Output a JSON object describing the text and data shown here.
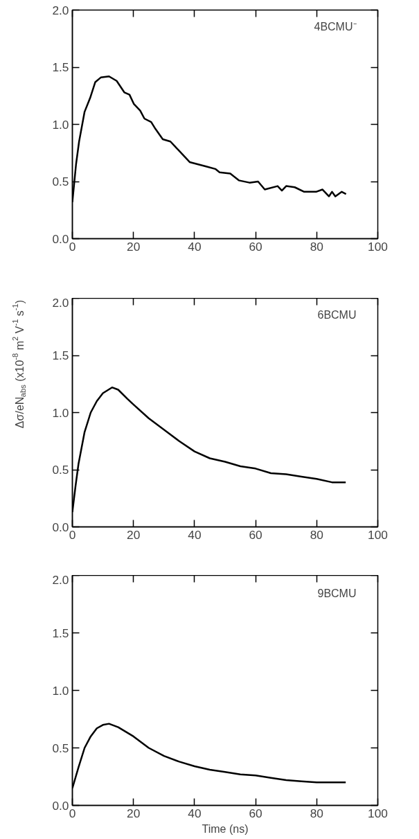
{
  "chart_data": [
    {
      "type": "line",
      "annotations": [
        "4BCMU⁻"
      ],
      "xlim": [
        0,
        100
      ],
      "ylim": [
        0,
        2.0
      ],
      "xticks": [
        0,
        20,
        40,
        60,
        80,
        100
      ],
      "yticks": [
        {
          "value": 0,
          "label": "0.0"
        },
        {
          "value": 0.5,
          "label": "0.5"
        },
        {
          "value": 1,
          "label": "1.0"
        },
        {
          "value": 1.5,
          "label": "1.5"
        },
        {
          "value": 2,
          "label": "2.0"
        }
      ],
      "grid": false,
      "marker": "none",
      "line_style": "solid",
      "series": [
        {
          "color": "#000000",
          "x": [
            0,
            1.2,
            2.2,
            4,
            5.8,
            7.5,
            9.3,
            12,
            14.5,
            17,
            18.7,
            20.1,
            22.2,
            23.6,
            25.8,
            27.2,
            29.6,
            32.1,
            34.9,
            38.4,
            41.2,
            44,
            46.8,
            48.2,
            51.7,
            54.5,
            58,
            60.8,
            63,
            67.2,
            68.6,
            70,
            72.8,
            75.9,
            79.8,
            81.9,
            84,
            85,
            86.1,
            88.2,
            89.6
          ],
          "values": [
            0.32,
            0.65,
            0.85,
            1.11,
            1.23,
            1.37,
            1.41,
            1.42,
            1.38,
            1.28,
            1.26,
            1.18,
            1.12,
            1.05,
            1.02,
            0.96,
            0.87,
            0.85,
            0.77,
            0.67,
            0.65,
            0.63,
            0.61,
            0.58,
            0.57,
            0.51,
            0.49,
            0.5,
            0.43,
            0.46,
            0.42,
            0.46,
            0.45,
            0.41,
            0.41,
            0.43,
            0.37,
            0.41,
            0.37,
            0.41,
            0.39
          ]
        }
      ]
    },
    {
      "type": "line",
      "annotations": [
        "6BCMU"
      ],
      "ylabel": "Δσ/eN$_{abs}$ (x10$^{-8}$ m$^{2}$ V$^{-1}$ s$^{-1}$)",
      "xlim": [
        0,
        100
      ],
      "ylim": [
        0,
        2.0
      ],
      "xticks": [
        0,
        20,
        40,
        60,
        80,
        100
      ],
      "yticks": [
        {
          "value": 0,
          "label": "0.0"
        },
        {
          "value": 0.5,
          "label": "0.5"
        },
        {
          "value": 1,
          "label": "1.0"
        },
        {
          "value": 1.5,
          "label": "1.5"
        },
        {
          "value": 2,
          "label": "2.0"
        }
      ],
      "grid": false,
      "marker": "none",
      "line_style": "solid",
      "series": [
        {
          "color": "#000000",
          "x": [
            0,
            1,
            2,
            4,
            6,
            8,
            10,
            13,
            15,
            18,
            20,
            25,
            30,
            35,
            40,
            45,
            50,
            55,
            60,
            65,
            70,
            75,
            80,
            85,
            89.5
          ],
          "values": [
            0.13,
            0.35,
            0.55,
            0.83,
            1.0,
            1.1,
            1.17,
            1.22,
            1.2,
            1.12,
            1.07,
            0.95,
            0.85,
            0.75,
            0.66,
            0.6,
            0.57,
            0.53,
            0.51,
            0.47,
            0.46,
            0.44,
            0.42,
            0.39,
            0.39
          ]
        }
      ]
    },
    {
      "type": "line",
      "annotations": [
        "9BCMU"
      ],
      "xlabel": "Time (ns)",
      "xlim": [
        0,
        100
      ],
      "ylim": [
        0,
        2.0
      ],
      "xticks": [
        0,
        20,
        40,
        60,
        80,
        100
      ],
      "yticks": [
        {
          "value": 0,
          "label": "0.0"
        },
        {
          "value": 0.5,
          "label": "0.5"
        },
        {
          "value": 1,
          "label": "1.0"
        },
        {
          "value": 1.5,
          "label": "1.5"
        },
        {
          "value": 2,
          "label": "2.0"
        }
      ],
      "grid": false,
      "marker": "none",
      "line_style": "solid",
      "series": [
        {
          "color": "#000000",
          "x": [
            0,
            2,
            4,
            6,
            8,
            10,
            12,
            15,
            20,
            25,
            30,
            35,
            40,
            45,
            50,
            55,
            60,
            65,
            70,
            75,
            80,
            85,
            89.5
          ],
          "values": [
            0.15,
            0.33,
            0.5,
            0.6,
            0.67,
            0.7,
            0.71,
            0.68,
            0.6,
            0.5,
            0.43,
            0.38,
            0.34,
            0.31,
            0.29,
            0.27,
            0.26,
            0.24,
            0.22,
            0.21,
            0.2,
            0.2,
            0.2
          ]
        }
      ]
    }
  ]
}
